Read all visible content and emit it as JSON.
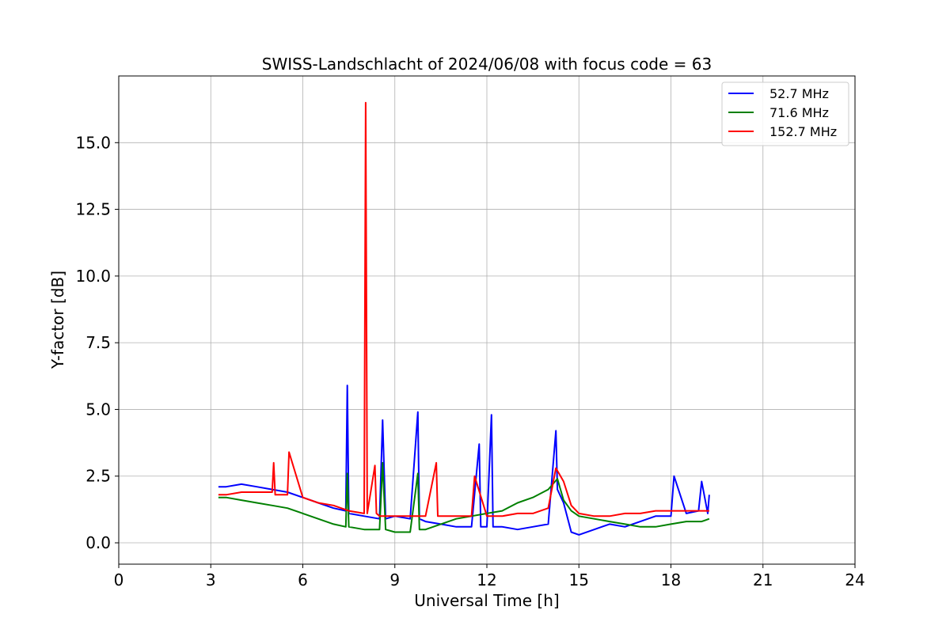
{
  "chart_data": {
    "type": "line",
    "title": "SWISS-Landschlacht of 2024/06/08 with focus code = 63",
    "xlabel": "Universal Time [h]",
    "ylabel": "Y-factor [dB]",
    "xlim": [
      0,
      24
    ],
    "ylim": [
      -0.8,
      17.5
    ],
    "xticks": [
      0,
      3,
      6,
      9,
      12,
      15,
      18,
      21,
      24
    ],
    "xtick_labels": [
      "0",
      "3",
      "6",
      "9",
      "12",
      "15",
      "18",
      "21",
      "24"
    ],
    "yticks": [
      0,
      2.5,
      5,
      7.5,
      10,
      12.5,
      15
    ],
    "ytick_labels": [
      "0.0",
      "2.5",
      "5.0",
      "7.5",
      "10.0",
      "12.5",
      "15.0"
    ],
    "grid": true,
    "legend_position": "upper right",
    "series": [
      {
        "name": "52.7 MHz",
        "color": "#0000ff",
        "x": [
          3.25,
          3.5,
          4.0,
          4.5,
          5.0,
          5.5,
          6.0,
          6.5,
          7.0,
          7.4,
          7.45,
          7.5,
          8.0,
          8.5,
          8.6,
          8.7,
          9.0,
          9.5,
          9.75,
          9.8,
          10.0,
          10.5,
          11.0,
          11.5,
          11.75,
          11.8,
          12.0,
          12.15,
          12.2,
          12.5,
          13.0,
          13.5,
          14.0,
          14.25,
          14.3,
          14.5,
          14.75,
          15.0,
          15.5,
          16.0,
          16.5,
          17.0,
          17.5,
          18.0,
          18.1,
          18.5,
          18.9,
          19.0,
          19.2,
          19.25
        ],
        "y": [
          2.1,
          2.1,
          2.2,
          2.1,
          2.0,
          1.9,
          1.7,
          1.5,
          1.3,
          1.2,
          5.9,
          1.1,
          1.0,
          0.9,
          4.6,
          0.9,
          1.0,
          0.9,
          4.9,
          0.9,
          0.8,
          0.7,
          0.6,
          0.6,
          3.7,
          0.6,
          0.6,
          4.8,
          0.6,
          0.6,
          0.5,
          0.6,
          0.7,
          4.2,
          2.0,
          1.5,
          0.4,
          0.3,
          0.5,
          0.7,
          0.6,
          0.8,
          1.0,
          1.0,
          2.5,
          1.1,
          1.2,
          2.3,
          1.1,
          1.8
        ]
      },
      {
        "name": "71.6 MHz",
        "color": "#008000",
        "x": [
          3.25,
          3.5,
          4.0,
          4.5,
          5.0,
          5.5,
          6.0,
          6.5,
          7.0,
          7.4,
          7.45,
          7.5,
          8.0,
          8.5,
          8.6,
          8.7,
          9.0,
          9.5,
          9.75,
          9.8,
          10.0,
          10.5,
          11.0,
          11.5,
          12.0,
          12.5,
          13.0,
          13.5,
          14.0,
          14.3,
          14.5,
          14.75,
          15.0,
          15.5,
          16.0,
          16.5,
          17.0,
          17.5,
          18.0,
          18.5,
          19.0,
          19.25
        ],
        "y": [
          1.7,
          1.7,
          1.6,
          1.5,
          1.4,
          1.3,
          1.1,
          0.9,
          0.7,
          0.6,
          2.6,
          0.6,
          0.5,
          0.5,
          3.0,
          0.5,
          0.4,
          0.4,
          2.6,
          0.5,
          0.5,
          0.7,
          0.9,
          1.0,
          1.1,
          1.2,
          1.5,
          1.7,
          2.0,
          2.4,
          1.6,
          1.2,
          1.0,
          0.9,
          0.8,
          0.7,
          0.6,
          0.6,
          0.7,
          0.8,
          0.8,
          0.9
        ]
      },
      {
        "name": "152.7 MHz",
        "color": "#ff0000",
        "x": [
          3.25,
          3.5,
          4.0,
          4.5,
          5.0,
          5.05,
          5.1,
          5.5,
          5.55,
          6.0,
          6.5,
          7.0,
          7.5,
          8.0,
          8.05,
          8.1,
          8.35,
          8.4,
          8.5,
          9.0,
          9.5,
          10.0,
          10.35,
          10.4,
          10.5,
          11.0,
          11.5,
          11.6,
          12.0,
          12.5,
          13.0,
          13.5,
          14.0,
          14.25,
          14.5,
          14.75,
          15.0,
          15.5,
          16.0,
          16.5,
          17.0,
          17.5,
          18.0,
          18.5,
          19.0,
          19.25
        ],
        "y": [
          1.8,
          1.8,
          1.9,
          1.9,
          1.9,
          3.0,
          1.8,
          1.8,
          3.4,
          1.7,
          1.5,
          1.4,
          1.2,
          1.1,
          16.5,
          1.1,
          2.9,
          1.1,
          1.0,
          1.0,
          1.0,
          1.0,
          3.0,
          1.0,
          1.0,
          1.0,
          1.0,
          2.5,
          1.0,
          1.0,
          1.1,
          1.1,
          1.3,
          2.8,
          2.3,
          1.4,
          1.1,
          1.0,
          1.0,
          1.1,
          1.1,
          1.2,
          1.2,
          1.2,
          1.2,
          1.2
        ]
      }
    ]
  }
}
